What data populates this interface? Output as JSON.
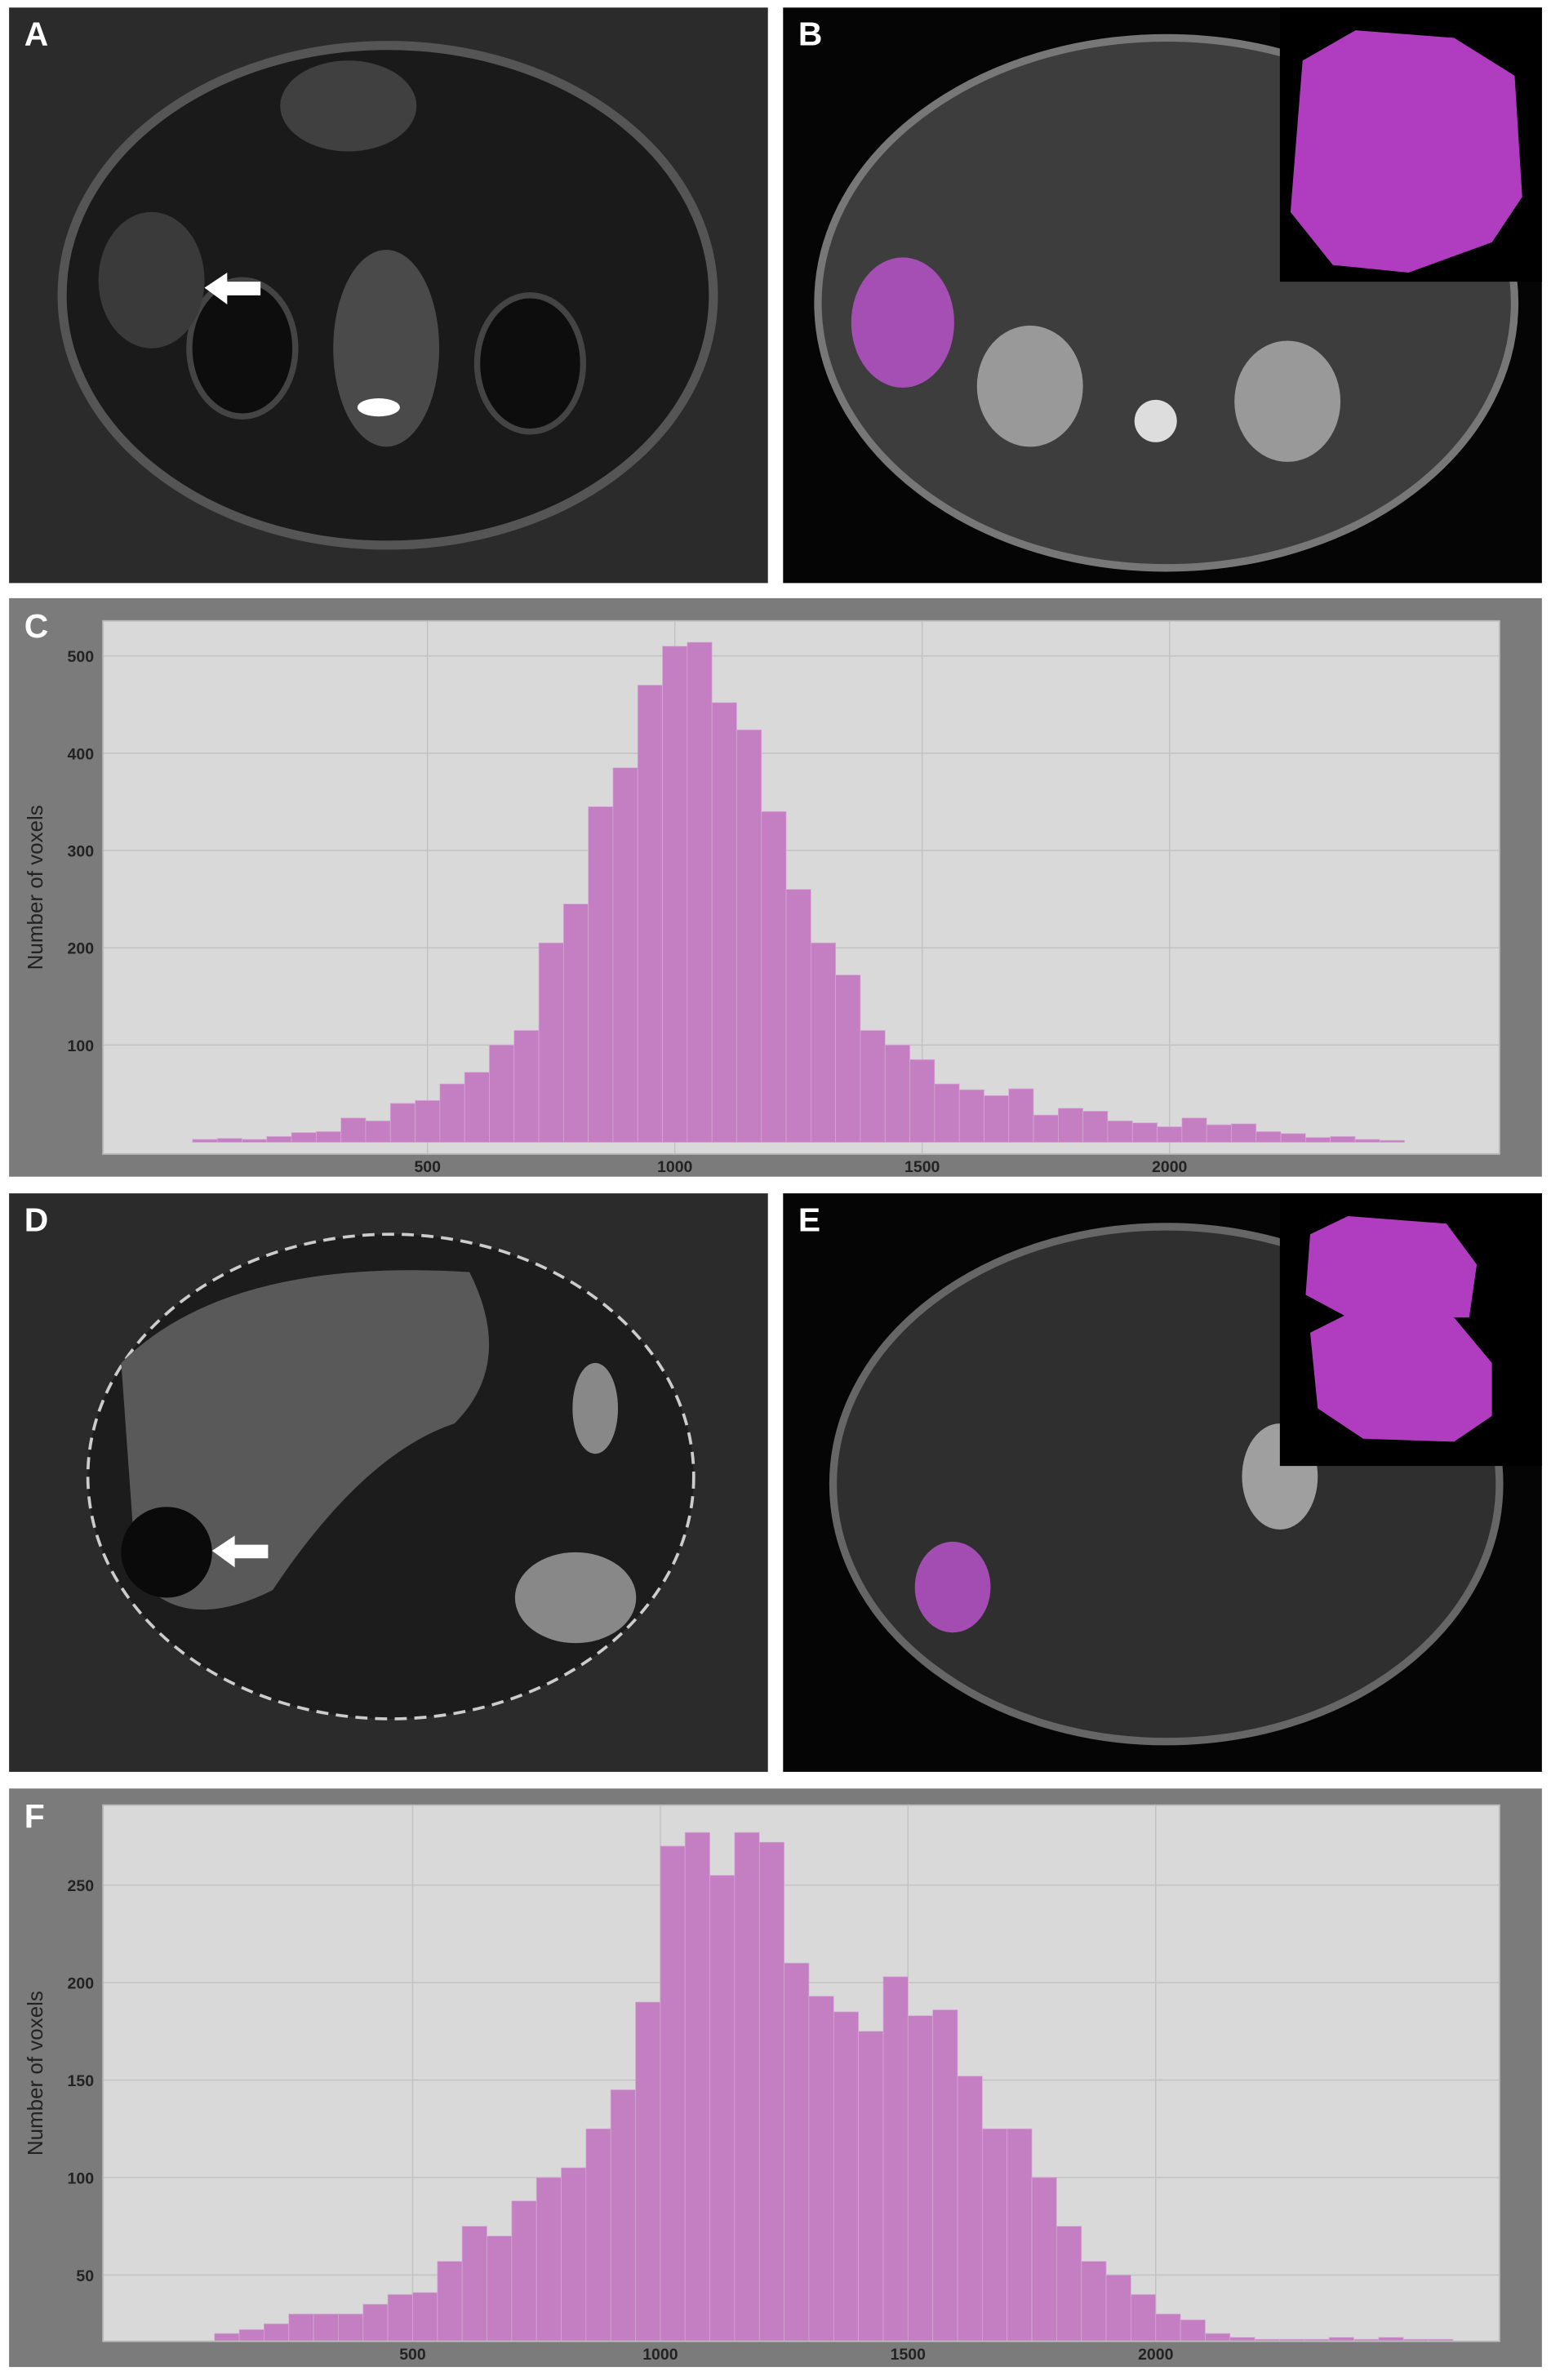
{
  "figure": {
    "panel_labels": [
      "A",
      "B",
      "D",
      "E"
    ]
  },
  "chart_data": [
    {
      "type": "histogram",
      "panel_label": "C",
      "ylabel": "Number of voxels",
      "color": "#c47fc2",
      "grid": true,
      "bins": [
        25,
        75,
        125,
        175,
        225,
        275,
        325,
        375,
        425,
        475,
        525,
        575,
        625,
        675,
        725,
        775,
        825,
        875,
        925,
        975,
        1025,
        1075,
        1125,
        1175,
        1225,
        1275,
        1325,
        1375,
        1425,
        1475,
        1525,
        1575,
        1625,
        1675,
        1725,
        1775,
        1825,
        1875,
        1925,
        1975,
        2025,
        2075,
        2125,
        2175,
        2225,
        2275,
        2325,
        2375,
        2425,
        2475
      ],
      "values": [
        3,
        4,
        3,
        6,
        10,
        11,
        25,
        22,
        40,
        43,
        60,
        72,
        100,
        115,
        205,
        245,
        345,
        385,
        470,
        510,
        514,
        452,
        424,
        340,
        260,
        205,
        172,
        115,
        100,
        85,
        60,
        54,
        48,
        55,
        28,
        35,
        32,
        22,
        20,
        16,
        25,
        18,
        19,
        11,
        9,
        5,
        6,
        3,
        2
      ],
      "xlim": [
        -156,
        2667
      ],
      "xticks": [
        500,
        1000,
        1500,
        2000
      ],
      "ylim": [
        -12,
        536
      ],
      "yticks": [
        100,
        200,
        300,
        400,
        500
      ]
    },
    {
      "type": "histogram",
      "panel_label": "F",
      "ylabel": "Number of voxels",
      "color": "#c47fc2",
      "grid": true,
      "bins": [
        100,
        150,
        200,
        250,
        300,
        350,
        400,
        450,
        500,
        550,
        600,
        650,
        700,
        750,
        800,
        850,
        900,
        950,
        1000,
        1050,
        1100,
        1150,
        1200,
        1250,
        1300,
        1350,
        1400,
        1450,
        1500,
        1550,
        1600,
        1650,
        1700,
        1750,
        1800,
        1850,
        1900,
        1950,
        2000,
        2050,
        2100,
        2150,
        2200,
        2250,
        2300,
        2350,
        2400,
        2450,
        2500,
        2550,
        2600
      ],
      "values": [
        20,
        22,
        25,
        30,
        30,
        30,
        35,
        40,
        41,
        57,
        75,
        70,
        88,
        100,
        105,
        125,
        145,
        190,
        270,
        277,
        255,
        277,
        272,
        210,
        193,
        185,
        175,
        203,
        183,
        186,
        152,
        125,
        125,
        100,
        75,
        57,
        50,
        40,
        30,
        27,
        20,
        18,
        17,
        17,
        17,
        18,
        17,
        18,
        17,
        17
      ],
      "xlim": [
        -125,
        2694
      ],
      "xticks": [
        500,
        1000,
        1500,
        2000
      ],
      "ylim": [
        16,
        291
      ],
      "yticks": [
        50,
        100,
        150,
        200,
        250
      ]
    }
  ]
}
